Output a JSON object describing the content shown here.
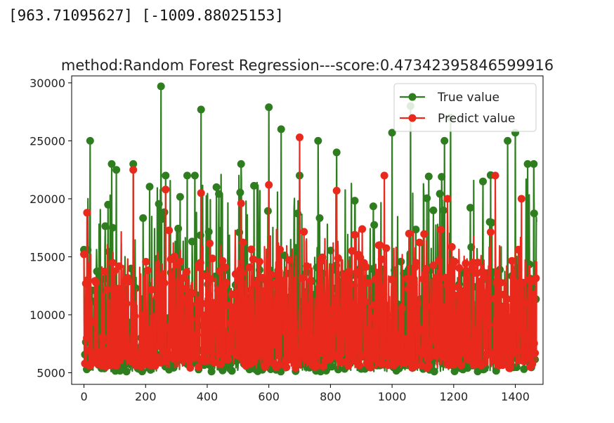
{
  "output_text": "[963.71095627] [-1009.88025153]",
  "chart_data": {
    "type": "line",
    "title": "method:Random Forest Regression---score:0.47342395846599916",
    "xlabel": "",
    "ylabel": "",
    "xlim": [
      -40,
      1490
    ],
    "ylim": [
      4000,
      30600
    ],
    "xticks": [
      0,
      200,
      400,
      600,
      800,
      1000,
      1200,
      1400
    ],
    "yticks": [
      5000,
      10000,
      15000,
      20000,
      25000,
      30000
    ],
    "legend_position": "top-right",
    "series": [
      {
        "name": "True value",
        "color": "#2e7d1f"
      },
      {
        "name": "Predict value",
        "color": "#e8291c"
      }
    ],
    "n_points": 1470,
    "true_value_peaks": [
      [
        20,
        25000
      ],
      [
        90,
        23000
      ],
      [
        105,
        22500
      ],
      [
        160,
        23000
      ],
      [
        250,
        29700
      ],
      [
        265,
        22000
      ],
      [
        335,
        22000
      ],
      [
        360,
        22000
      ],
      [
        380,
        27700
      ],
      [
        430,
        21000
      ],
      [
        510,
        23000
      ],
      [
        600,
        27900
      ],
      [
        640,
        26000
      ],
      [
        700,
        22000
      ],
      [
        760,
        25000
      ],
      [
        820,
        24000
      ],
      [
        1000,
        25700
      ],
      [
        1060,
        28000
      ],
      [
        1170,
        25000
      ],
      [
        1190,
        27000
      ],
      [
        1295,
        21500
      ],
      [
        1375,
        25000
      ],
      [
        1400,
        25700
      ],
      [
        1440,
        23000
      ],
      [
        1460,
        23000
      ],
      [
        1470,
        18000
      ]
    ],
    "predict_value_peaks": [
      [
        10,
        18800
      ],
      [
        160,
        22500
      ],
      [
        265,
        20800
      ],
      [
        380,
        20500
      ],
      [
        510,
        19600
      ],
      [
        600,
        21200
      ],
      [
        700,
        25300
      ],
      [
        820,
        20700
      ],
      [
        975,
        22000
      ],
      [
        1055,
        17000
      ],
      [
        1180,
        20000
      ],
      [
        1335,
        22000
      ],
      [
        1420,
        20000
      ],
      [
        1470,
        14600
      ]
    ]
  }
}
